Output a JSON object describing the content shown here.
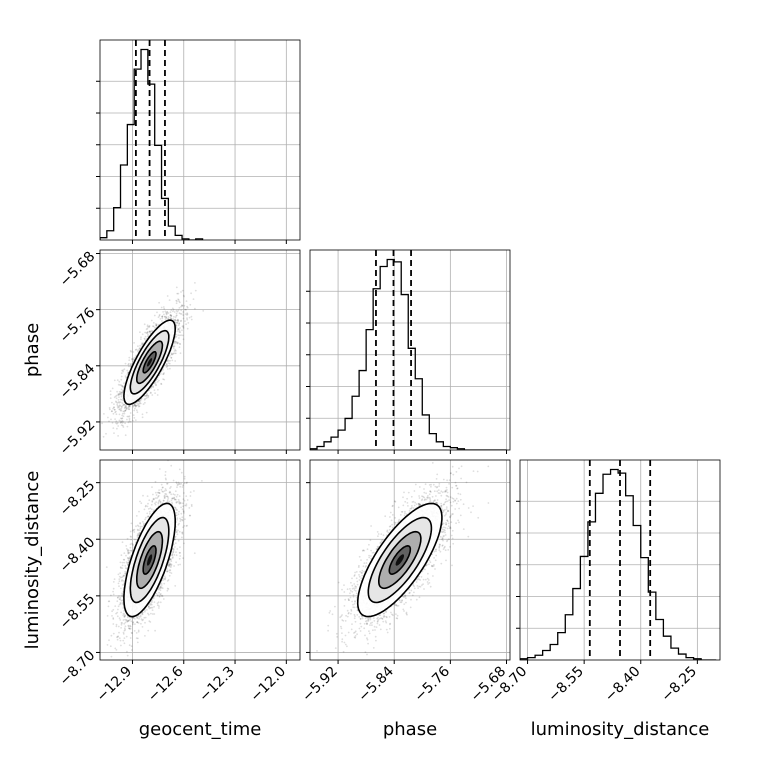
{
  "chart_data": {
    "type": "corner",
    "parameters": [
      "geocent_time",
      "phase",
      "luminosity_distance"
    ],
    "axis_labels": {
      "geocent_time": "geocent_time",
      "phase": "phase",
      "luminosity_distance": "luminosity_distance"
    },
    "ranges": {
      "geocent_time": [
        -13.09,
        -11.92
      ],
      "phase": [
        -5.96,
        -5.675
      ],
      "luminosity_distance": [
        -8.72,
        -8.19
      ]
    },
    "ticks": {
      "geocent_time": [
        -12.9,
        -12.6,
        -12.3,
        -12.0
      ],
      "phase": [
        -5.92,
        -5.84,
        -5.76,
        -5.68
      ],
      "luminosity_distance": [
        -8.7,
        -8.55,
        -8.4,
        -8.25
      ]
    },
    "tick_labels": {
      "geocent_time": [
        "−12.9",
        "−12.6",
        "−12.3",
        "−12.0"
      ],
      "phase": [
        "−5.92",
        "−5.84",
        "−5.76",
        "−5.68"
      ],
      "luminosity_distance": [
        "−8.70",
        "−8.55",
        "−8.40",
        "−8.25"
      ]
    },
    "quantiles": {
      "geocent_time": [
        -12.88,
        -12.8,
        -12.71
      ],
      "phase": [
        -5.866,
        -5.841,
        -5.816
      ],
      "luminosity_distance": [
        -8.535,
        -8.455,
        -8.375
      ]
    },
    "histograms": {
      "geocent_time": {
        "edges": [
          -13.09,
          -13.05,
          -13.01,
          -12.97,
          -12.93,
          -12.89,
          -12.85,
          -12.81,
          -12.77,
          -12.73,
          -12.69,
          -12.65,
          -12.61,
          -12.57,
          -12.53,
          -12.49
        ],
        "counts": [
          2,
          8,
          28,
          65,
          100,
          148,
          165,
          135,
          82,
          36,
          12,
          4,
          1,
          0,
          1
        ]
      },
      "phase": {
        "edges": [
          -5.96,
          -5.95,
          -5.94,
          -5.93,
          -5.92,
          -5.91,
          -5.9,
          -5.89,
          -5.88,
          -5.87,
          -5.86,
          -5.85,
          -5.84,
          -5.83,
          -5.82,
          -5.81,
          -5.8,
          -5.79,
          -5.78,
          -5.77,
          -5.76,
          -5.75,
          -5.74,
          -5.73,
          -5.72,
          -5.71,
          -5.7,
          -5.69,
          -5.68
        ],
        "counts": [
          1,
          3,
          7,
          11,
          17,
          27,
          46,
          68,
          103,
          138,
          157,
          163,
          161,
          133,
          87,
          61,
          30,
          14,
          7,
          3,
          2,
          1,
          0,
          0,
          0,
          0,
          0,
          0
        ]
      },
      "luminosity_distance": {
        "edges": [
          -8.72,
          -8.7,
          -8.68,
          -8.66,
          -8.64,
          -8.62,
          -8.6,
          -8.58,
          -8.56,
          -8.54,
          -8.52,
          -8.5,
          -8.48,
          -8.46,
          -8.44,
          -8.42,
          -8.4,
          -8.38,
          -8.36,
          -8.34,
          -8.32,
          -8.3,
          -8.28,
          -8.26,
          -8.24,
          -8.22,
          -8.2
        ],
        "counts": [
          1,
          2,
          4,
          8,
          13,
          23,
          38,
          60,
          87,
          116,
          140,
          156,
          160,
          157,
          138,
          113,
          86,
          57,
          34,
          20,
          10,
          5,
          2,
          1,
          0,
          0
        ]
      }
    },
    "pairs": [
      {
        "x": "geocent_time",
        "y": "phase",
        "mean": [
          -12.8,
          -5.835
        ],
        "std": [
          0.075,
          0.03
        ],
        "rho": 0.8
      },
      {
        "x": "geocent_time",
        "y": "luminosity_distance",
        "mean": [
          -12.8,
          -8.455
        ],
        "std": [
          0.075,
          0.075
        ],
        "rho": 0.68
      },
      {
        "x": "phase",
        "y": "luminosity_distance",
        "mean": [
          -5.832,
          -8.455
        ],
        "std": [
          0.03,
          0.075
        ],
        "rho": 0.75
      }
    ],
    "contour_levels_sigma": [
      0.5,
      1.0,
      1.5,
      2.0
    ],
    "grid": true,
    "colors": {
      "hist": "#000000",
      "samples": "#000000",
      "grid": "#b0b0b0",
      "quantile_line": "#000000"
    }
  }
}
